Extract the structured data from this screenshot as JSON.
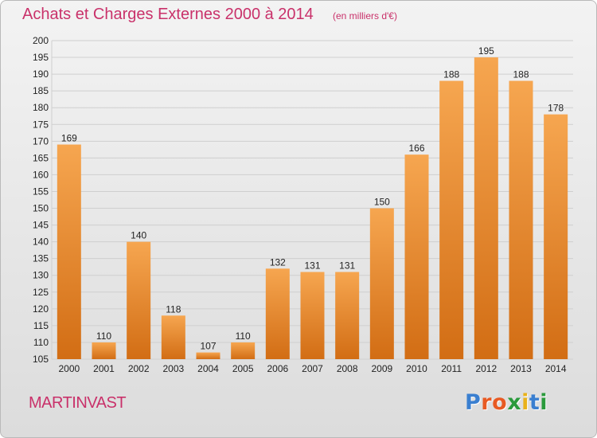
{
  "header": {
    "title": "Achats et Charges Externes 2000 à 2014",
    "subtitle": "(en milliers d'€)"
  },
  "footer": {
    "commune": "MARTINVAST",
    "logo": {
      "letters": [
        "P",
        "r",
        "o",
        "x",
        "i",
        "t",
        "i"
      ],
      "colors": [
        "#3a7fd0",
        "#e85a23",
        "#e85a23",
        "#2a9a3c",
        "#e9b21a",
        "#3a7fd0",
        "#2a9a3c"
      ]
    }
  },
  "colors": {
    "bar_light": "#f6a650",
    "bar_dark": "#d26d14",
    "grid": "#cfcfcf",
    "text": "#c9316a"
  },
  "chart_data": {
    "type": "bar",
    "categories": [
      "2000",
      "2001",
      "2002",
      "2003",
      "2004",
      "2005",
      "2006",
      "2007",
      "2008",
      "2009",
      "2010",
      "2011",
      "2012",
      "2013",
      "2014"
    ],
    "values": [
      169,
      110,
      140,
      118,
      107,
      110,
      132,
      131,
      131,
      150,
      166,
      188,
      195,
      188,
      178
    ],
    "title": "Achats et Charges Externes 2000 à 2014",
    "subtitle": "(en milliers d'€)",
    "ylim": [
      105,
      200
    ],
    "ytick_step": 5,
    "grid": true
  }
}
